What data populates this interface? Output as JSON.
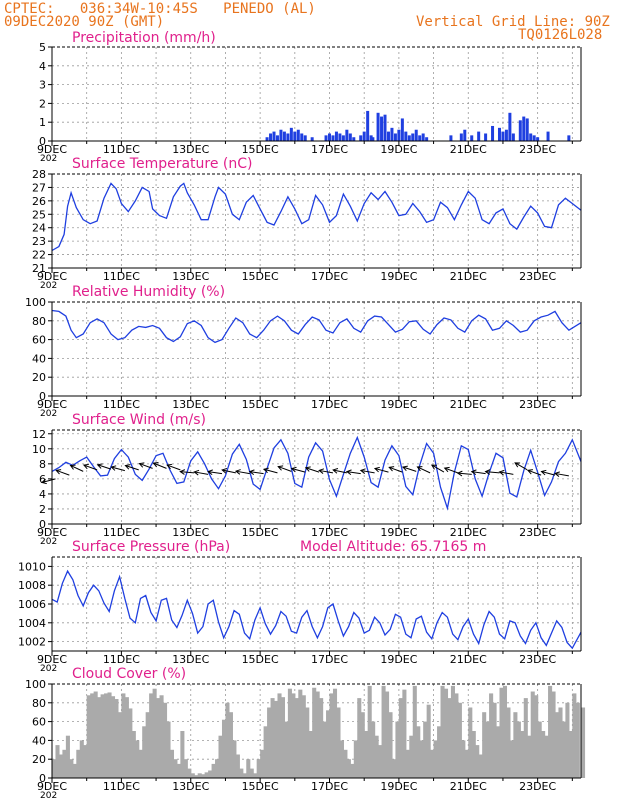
{
  "header": {
    "line1_left": "CPTEC:   036:34W-10:45S   PENEDO (AL)",
    "line2_left": "09DEC2020 90Z (GMT)",
    "line1_right": "Vertical Grid Line: 90Z",
    "line2_right": "TQ0126L028"
  },
  "colors": {
    "header": "#e8741e",
    "title": "#e0208c",
    "series": "#1f3fe0",
    "cloud": "#aaaaaa",
    "axis": "#000000",
    "grid": "#9a9a9a"
  },
  "x_ticks": [
    "9DEC",
    "11DEC",
    "13DEC",
    "15DEC",
    "17DEC",
    "19DEC",
    "21DEC",
    "23DEC"
  ],
  "x_partial_year": "202",
  "chart_data": [
    {
      "type": "bar",
      "title": "Precipitation (mm/h)",
      "ylim": [
        0,
        5
      ],
      "yticks": [
        "0",
        "1",
        "2",
        "3",
        "4",
        "5"
      ],
      "xlim": [
        9,
        24.25
      ],
      "x": [
        15.2,
        15.3,
        15.4,
        15.5,
        15.6,
        15.7,
        15.8,
        15.9,
        16.0,
        16.1,
        16.2,
        16.3,
        16.5,
        16.9,
        17.0,
        17.1,
        17.2,
        17.3,
        17.4,
        17.5,
        17.6,
        17.7,
        17.9,
        18.0,
        18.1,
        18.2,
        18.25,
        18.4,
        18.5,
        18.6,
        18.7,
        18.8,
        18.9,
        19.0,
        19.1,
        19.2,
        19.3,
        19.4,
        19.5,
        19.6,
        19.7,
        19.8,
        20.5,
        20.8,
        20.9,
        21.1,
        21.3,
        21.5,
        21.7,
        21.9,
        22.0,
        22.1,
        22.2,
        22.3,
        22.5,
        22.6,
        22.7,
        22.8,
        22.9,
        23.0,
        23.3,
        23.9
      ],
      "values": [
        0.2,
        0.4,
        0.5,
        0.3,
        0.6,
        0.5,
        0.4,
        0.7,
        0.5,
        0.6,
        0.4,
        0.3,
        0.2,
        0.3,
        0.4,
        0.3,
        0.5,
        0.4,
        0.3,
        0.6,
        0.4,
        0.2,
        0.3,
        0.5,
        1.6,
        0.3,
        0.2,
        1.5,
        1.3,
        1.4,
        0.5,
        0.7,
        0.4,
        0.6,
        1.2,
        0.5,
        0.3,
        0.4,
        0.6,
        0.3,
        0.4,
        0.2,
        0.3,
        0.4,
        0.6,
        0.3,
        0.5,
        0.4,
        0.8,
        0.7,
        0.5,
        0.6,
        1.5,
        0.4,
        1.1,
        1.3,
        1.2,
        0.4,
        0.3,
        0.2,
        0.5,
        0.3
      ]
    },
    {
      "type": "line",
      "title": "Surface Temperature (nC)",
      "ylim": [
        21,
        28
      ],
      "yticks": [
        "21",
        "22",
        "23",
        "24",
        "25",
        "26",
        "27",
        "28"
      ],
      "xlim": [
        9,
        24.25
      ],
      "x": [
        9.0,
        9.2,
        9.35,
        9.45,
        9.55,
        9.7,
        9.9,
        10.1,
        10.3,
        10.5,
        10.7,
        10.85,
        11.0,
        11.2,
        11.4,
        11.6,
        11.8,
        11.9,
        12.1,
        12.3,
        12.5,
        12.7,
        12.8,
        12.9,
        13.1,
        13.3,
        13.5,
        13.7,
        13.8,
        14.0,
        14.2,
        14.4,
        14.6,
        14.8,
        15.0,
        15.2,
        15.4,
        15.6,
        15.8,
        16.0,
        16.2,
        16.4,
        16.6,
        16.8,
        17.0,
        17.2,
        17.4,
        17.6,
        17.8,
        18.0,
        18.2,
        18.4,
        18.6,
        18.8,
        19.0,
        19.2,
        19.4,
        19.6,
        19.8,
        20.0,
        20.2,
        20.4,
        20.6,
        20.8,
        21.0,
        21.2,
        21.4,
        21.6,
        21.8,
        22.0,
        22.2,
        22.4,
        22.6,
        22.8,
        23.0,
        23.2,
        23.4,
        23.6,
        23.8,
        24.0,
        24.25
      ],
      "values": [
        22.3,
        22.6,
        23.5,
        25.6,
        26.6,
        25.5,
        24.6,
        24.3,
        24.5,
        26.2,
        27.3,
        26.9,
        25.8,
        25.2,
        26.0,
        27.0,
        26.7,
        25.4,
        24.9,
        24.7,
        26.3,
        27.1,
        27.3,
        26.6,
        25.7,
        24.6,
        24.6,
        26.3,
        27.0,
        26.5,
        25.0,
        24.6,
        25.9,
        26.4,
        25.4,
        24.4,
        24.2,
        25.2,
        26.3,
        25.4,
        24.3,
        24.6,
        26.4,
        25.7,
        24.4,
        24.9,
        26.5,
        25.6,
        24.5,
        25.8,
        26.6,
        26.1,
        26.7,
        25.9,
        24.9,
        25.0,
        25.8,
        25.2,
        24.4,
        24.6,
        25.9,
        25.5,
        24.6,
        25.7,
        26.7,
        26.2,
        24.6,
        24.3,
        25.1,
        25.4,
        24.3,
        23.9,
        24.8,
        25.6,
        25.1,
        24.1,
        24.0,
        25.7,
        26.2,
        25.8,
        25.3
      ]
    },
    {
      "type": "line",
      "title": "Relative Humidity (%)",
      "ylim": [
        0,
        100
      ],
      "yticks": [
        "0",
        "20",
        "40",
        "60",
        "80",
        "100"
      ],
      "xlim": [
        9,
        24.25
      ],
      "x": [
        9.0,
        9.2,
        9.4,
        9.55,
        9.7,
        9.9,
        10.1,
        10.3,
        10.5,
        10.7,
        10.9,
        11.1,
        11.3,
        11.5,
        11.7,
        11.9,
        12.1,
        12.3,
        12.5,
        12.7,
        12.9,
        13.1,
        13.3,
        13.5,
        13.7,
        13.9,
        14.1,
        14.3,
        14.5,
        14.7,
        14.9,
        15.1,
        15.3,
        15.5,
        15.7,
        15.9,
        16.1,
        16.3,
        16.5,
        16.7,
        16.9,
        17.1,
        17.3,
        17.5,
        17.7,
        17.9,
        18.1,
        18.3,
        18.5,
        18.7,
        18.9,
        19.1,
        19.3,
        19.5,
        19.7,
        19.9,
        20.1,
        20.3,
        20.5,
        20.7,
        20.9,
        21.1,
        21.3,
        21.5,
        21.7,
        21.9,
        22.1,
        22.3,
        22.5,
        22.7,
        22.9,
        23.1,
        23.3,
        23.5,
        23.7,
        23.9,
        24.25
      ],
      "values": [
        91,
        90,
        85,
        70,
        62,
        66,
        78,
        82,
        78,
        66,
        60,
        62,
        70,
        74,
        73,
        75,
        72,
        62,
        58,
        63,
        77,
        80,
        75,
        62,
        57,
        60,
        72,
        83,
        78,
        66,
        62,
        70,
        80,
        85,
        80,
        70,
        66,
        76,
        84,
        81,
        70,
        67,
        78,
        82,
        72,
        68,
        80,
        85,
        84,
        76,
        68,
        71,
        79,
        80,
        71,
        66,
        76,
        83,
        81,
        72,
        68,
        80,
        86,
        82,
        70,
        72,
        80,
        75,
        68,
        70,
        80,
        84,
        86,
        90,
        78,
        70,
        78
      ]
    },
    {
      "type": "line",
      "title": "Surface Wind (m/s)",
      "ylim": [
        0,
        12.5
      ],
      "yticks": [
        "0",
        "2",
        "4",
        "6",
        "8",
        "10",
        "12"
      ],
      "xlim": [
        9,
        24.25
      ],
      "x": [
        9.0,
        9.2,
        9.4,
        9.6,
        9.8,
        10.0,
        10.2,
        10.4,
        10.6,
        10.8,
        11.0,
        11.2,
        11.4,
        11.6,
        11.8,
        12.0,
        12.2,
        12.4,
        12.6,
        12.8,
        13.0,
        13.2,
        13.4,
        13.6,
        13.8,
        14.0,
        14.2,
        14.4,
        14.6,
        14.8,
        15.0,
        15.2,
        15.4,
        15.6,
        15.8,
        16.0,
        16.2,
        16.4,
        16.6,
        16.8,
        17.0,
        17.2,
        17.4,
        17.6,
        17.8,
        18.0,
        18.2,
        18.4,
        18.6,
        18.8,
        19.0,
        19.2,
        19.4,
        19.6,
        19.8,
        20.0,
        20.2,
        20.4,
        20.6,
        20.8,
        21.0,
        21.2,
        21.4,
        21.6,
        21.8,
        22.0,
        22.2,
        22.4,
        22.6,
        22.8,
        23.0,
        23.2,
        23.4,
        23.6,
        23.8,
        24.0,
        24.25
      ],
      "values": [
        7.0,
        7.5,
        8.2,
        7.8,
        8.4,
        8.9,
        7.6,
        6.4,
        6.5,
        8.7,
        9.9,
        8.9,
        6.6,
        5.8,
        7.3,
        9.1,
        9.4,
        7.2,
        5.4,
        5.6,
        8.4,
        9.6,
        8.0,
        6.0,
        4.7,
        6.4,
        9.3,
        10.6,
        8.6,
        5.3,
        4.6,
        7.4,
        10.1,
        11.2,
        9.4,
        5.4,
        4.9,
        8.9,
        10.8,
        9.7,
        5.9,
        3.7,
        6.6,
        9.4,
        11.5,
        8.9,
        5.5,
        4.9,
        8.5,
        10.4,
        9.1,
        5.0,
        3.9,
        7.8,
        10.7,
        9.4,
        4.9,
        2.1,
        6.9,
        10.4,
        9.9,
        6.0,
        3.7,
        6.8,
        9.4,
        8.8,
        4.1,
        3.6,
        7.1,
        9.8,
        6.9,
        3.8,
        5.6,
        8.3,
        9.4,
        11.2,
        8.3
      ],
      "arrows_x": [
        9.1,
        9.5,
        9.9,
        10.3,
        10.7,
        11.1,
        11.5,
        11.9,
        12.3,
        12.7,
        13.1,
        13.5,
        13.9,
        14.3,
        14.7,
        15.1,
        15.5,
        15.9,
        16.3,
        16.7,
        17.1,
        17.5,
        17.9,
        18.3,
        18.7,
        19.1,
        19.5,
        19.9,
        20.3,
        20.7,
        21.1,
        21.5,
        21.9,
        22.3,
        22.7,
        23.1,
        23.5,
        23.9
      ],
      "arrows_y": [
        6.0,
        6.5,
        7.0,
        7.2,
        7.3,
        7.1,
        7.2,
        7.4,
        7.4,
        7.2,
        6.8,
        6.6,
        6.7,
        6.8,
        6.7,
        6.7,
        6.8,
        7.0,
        6.9,
        6.9,
        6.8,
        6.8,
        6.7,
        6.8,
        6.9,
        6.9,
        7.0,
        6.8,
        6.9,
        6.8,
        6.6,
        6.7,
        6.8,
        6.6,
        7.2,
        6.5,
        6.5,
        6.4
      ],
      "arrows_dir_deg": [
        15,
        -20,
        -25,
        -20,
        -18,
        -15,
        -18,
        -20,
        -22,
        -20,
        -5,
        -10,
        -8,
        -12,
        -10,
        -8,
        -15,
        -20,
        -15,
        -18,
        -10,
        -12,
        -8,
        -10,
        -15,
        -20,
        -18,
        -25,
        -30,
        -20,
        -5,
        -8,
        -5,
        -10,
        -30,
        -20,
        -15,
        -10
      ]
    },
    {
      "type": "line",
      "title": "Surface Pressure (hPa)",
      "subtitle": "Model Altitude: 65.7165 m",
      "ylim": [
        1001,
        1011
      ],
      "yticks": [
        "1002",
        "1004",
        "1006",
        "1008",
        "1010"
      ],
      "xlim": [
        9,
        24.25
      ],
      "x": [
        9.0,
        9.15,
        9.3,
        9.45,
        9.6,
        9.75,
        9.9,
        10.05,
        10.2,
        10.35,
        10.5,
        10.65,
        10.8,
        10.95,
        11.1,
        11.25,
        11.4,
        11.55,
        11.7,
        11.85,
        12.0,
        12.15,
        12.3,
        12.45,
        12.6,
        12.75,
        12.9,
        13.05,
        13.2,
        13.35,
        13.5,
        13.65,
        13.8,
        13.95,
        14.1,
        14.25,
        14.4,
        14.55,
        14.7,
        14.85,
        15.0,
        15.15,
        15.3,
        15.45,
        15.6,
        15.75,
        15.9,
        16.05,
        16.2,
        16.35,
        16.5,
        16.65,
        16.8,
        16.95,
        17.1,
        17.25,
        17.4,
        17.55,
        17.7,
        17.85,
        18.0,
        18.15,
        18.3,
        18.45,
        18.6,
        18.75,
        18.9,
        19.05,
        19.2,
        19.35,
        19.5,
        19.65,
        19.8,
        19.95,
        20.1,
        20.25,
        20.4,
        20.55,
        20.7,
        20.85,
        21.0,
        21.15,
        21.3,
        21.45,
        21.6,
        21.75,
        21.9,
        22.05,
        22.2,
        22.35,
        22.5,
        22.65,
        22.8,
        22.95,
        23.1,
        23.25,
        23.4,
        23.55,
        23.7,
        23.85,
        24.0,
        24.25
      ],
      "values": [
        1006.5,
        1006.2,
        1008.2,
        1009.5,
        1008.6,
        1006.9,
        1005.8,
        1007.2,
        1008.0,
        1007.4,
        1006.1,
        1005.2,
        1007.4,
        1008.9,
        1006.6,
        1004.5,
        1004.0,
        1006.6,
        1006.9,
        1005.1,
        1004.2,
        1006.4,
        1006.6,
        1004.3,
        1003.5,
        1004.8,
        1006.4,
        1005.0,
        1002.9,
        1003.6,
        1006.0,
        1006.4,
        1004.1,
        1002.4,
        1003.6,
        1005.3,
        1004.9,
        1002.9,
        1002.3,
        1004.3,
        1005.6,
        1003.9,
        1002.8,
        1003.7,
        1005.2,
        1004.7,
        1003.1,
        1002.9,
        1004.6,
        1005.3,
        1003.6,
        1002.4,
        1003.6,
        1005.6,
        1006.0,
        1004.2,
        1002.6,
        1003.6,
        1005.1,
        1004.5,
        1002.9,
        1003.2,
        1004.6,
        1004.0,
        1002.7,
        1003.3,
        1004.9,
        1004.6,
        1002.8,
        1002.4,
        1004.4,
        1004.7,
        1003.0,
        1002.3,
        1004.0,
        1005.1,
        1004.6,
        1002.8,
        1002.2,
        1003.6,
        1004.4,
        1002.8,
        1001.8,
        1003.8,
        1005.2,
        1004.6,
        1002.8,
        1002.3,
        1004.2,
        1004.0,
        1002.6,
        1001.8,
        1003.2,
        1004.0,
        1002.4,
        1001.6,
        1002.9,
        1004.2,
        1003.5,
        1001.9,
        1001.3,
        1003.0
      ]
    },
    {
      "type": "area",
      "title": "Cloud Cover (%)",
      "ylim": [
        0,
        100
      ],
      "yticks": [
        "0",
        "20",
        "40",
        "60",
        "80",
        "100"
      ],
      "xlim": [
        9,
        24.25
      ],
      "x": [
        9.0,
        9.1,
        9.2,
        9.3,
        9.4,
        9.5,
        9.6,
        9.7,
        9.8,
        9.9,
        10.0,
        10.1,
        10.2,
        10.3,
        10.4,
        10.5,
        10.6,
        10.7,
        10.8,
        10.9,
        11.0,
        11.1,
        11.2,
        11.3,
        11.4,
        11.5,
        11.6,
        11.7,
        11.8,
        11.9,
        12.0,
        12.1,
        12.2,
        12.3,
        12.4,
        12.5,
        12.6,
        12.7,
        12.8,
        12.9,
        13.0,
        13.1,
        13.2,
        13.3,
        13.4,
        13.5,
        13.6,
        13.7,
        13.8,
        13.9,
        14.0,
        14.1,
        14.2,
        14.3,
        14.4,
        14.5,
        14.6,
        14.7,
        14.8,
        14.9,
        15.0,
        15.1,
        15.2,
        15.3,
        15.4,
        15.5,
        15.6,
        15.7,
        15.8,
        15.9,
        16.0,
        16.1,
        16.2,
        16.3,
        16.4,
        16.5,
        16.6,
        16.7,
        16.8,
        16.9,
        17.0,
        17.1,
        17.2,
        17.3,
        17.4,
        17.5,
        17.6,
        17.7,
        17.8,
        17.9,
        18.0,
        18.1,
        18.2,
        18.3,
        18.4,
        18.5,
        18.6,
        18.7,
        18.8,
        18.9,
        19.0,
        19.1,
        19.2,
        19.3,
        19.4,
        19.5,
        19.6,
        19.7,
        19.8,
        19.9,
        20.0,
        20.1,
        20.2,
        20.3,
        20.4,
        20.5,
        20.6,
        20.7,
        20.8,
        20.9,
        21.0,
        21.1,
        21.2,
        21.3,
        21.4,
        21.5,
        21.6,
        21.7,
        21.8,
        21.9,
        22.0,
        22.1,
        22.2,
        22.3,
        22.4,
        22.5,
        22.6,
        22.7,
        22.8,
        22.9,
        23.0,
        23.1,
        23.2,
        23.3,
        23.4,
        23.5,
        23.6,
        23.7,
        23.8,
        23.9,
        24.0,
        24.1,
        24.25
      ],
      "values": [
        20,
        35,
        25,
        30,
        45,
        20,
        15,
        30,
        40,
        35,
        88,
        90,
        92,
        86,
        89,
        90,
        91,
        87,
        84,
        70,
        90,
        86,
        74,
        50,
        40,
        30,
        55,
        70,
        90,
        95,
        85,
        88,
        80,
        60,
        30,
        20,
        15,
        50,
        20,
        10,
        5,
        3,
        5,
        4,
        6,
        8,
        15,
        20,
        45,
        62,
        80,
        70,
        40,
        25,
        10,
        5,
        20,
        10,
        5,
        20,
        30,
        55,
        75,
        85,
        82,
        90,
        86,
        60,
        95,
        90,
        85,
        94,
        88,
        75,
        50,
        96,
        92,
        85,
        60,
        72,
        90,
        95,
        75,
        40,
        30,
        20,
        15,
        40,
        85,
        70,
        50,
        98,
        60,
        45,
        35,
        98,
        92,
        70,
        20,
        60,
        85,
        94,
        30,
        45,
        98,
        55,
        40,
        60,
        78,
        30,
        40,
        55,
        98,
        95,
        85,
        98,
        90,
        80,
        40,
        30,
        75,
        50,
        35,
        25,
        70,
        60,
        90,
        80,
        55,
        96,
        98,
        75,
        40,
        70,
        60,
        50,
        85,
        45,
        92,
        88,
        60,
        50,
        45,
        98,
        92,
        70,
        75,
        60,
        80,
        50,
        90,
        80,
        75
      ]
    }
  ]
}
